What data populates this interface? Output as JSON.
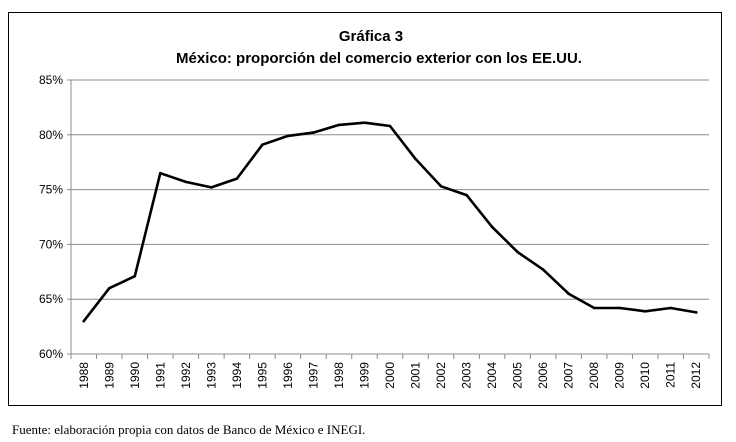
{
  "chart_data": {
    "type": "line",
    "title": "Gráfica 3",
    "subtitle": "México: proporción del comercio exterior con los EE.UU.",
    "xlabel": "",
    "ylabel": "",
    "ylim": [
      60,
      85
    ],
    "y_ticks": [
      60,
      65,
      70,
      75,
      80,
      85
    ],
    "y_tick_labels": [
      "60%",
      "65%",
      "70%",
      "75%",
      "80%",
      "85%"
    ],
    "grid": true,
    "legend": "none",
    "categories": [
      "1988",
      "1989",
      "1990",
      "1991",
      "1992",
      "1993",
      "1994",
      "1995",
      "1996",
      "1997",
      "1998",
      "1999",
      "2000",
      "2001",
      "2002",
      "2003",
      "2004",
      "2005",
      "2006",
      "2007",
      "2008",
      "2009",
      "2010",
      "2011",
      "2012"
    ],
    "series": [
      {
        "name": "Proporción del comercio exterior con los EE.UU.",
        "values": [
          63.0,
          66.0,
          67.1,
          76.5,
          75.7,
          75.2,
          76.0,
          79.1,
          79.9,
          80.2,
          80.9,
          81.1,
          80.8,
          77.8,
          75.3,
          74.5,
          71.6,
          69.3,
          67.7,
          65.5,
          64.2,
          64.2,
          63.9,
          64.2,
          63.8
        ]
      }
    ]
  },
  "footer": {
    "source": "Fuente: elaboración propia con datos de Banco de México e INEGI."
  }
}
